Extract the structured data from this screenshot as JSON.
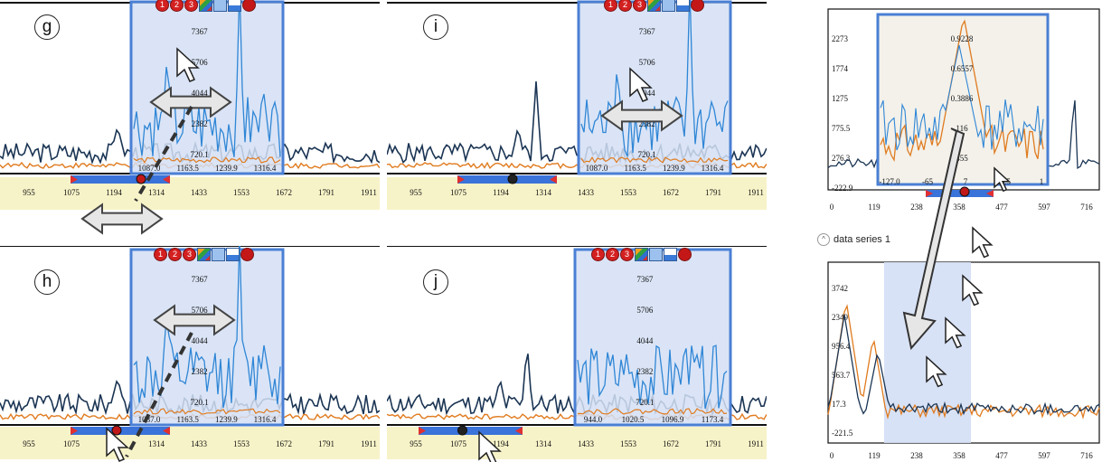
{
  "panels": {
    "g": {
      "badge": "g",
      "x_ticks": [
        "955",
        "1075",
        "1194",
        "1314",
        "1433",
        "1553",
        "1672",
        "1791",
        "1911"
      ],
      "lens_y_labels": [
        "7367",
        "5706",
        "4044",
        "2382",
        "720.1"
      ],
      "lens_x_labels": [
        "1087.0",
        "1163.5",
        "1239.9",
        "1316.4"
      ]
    },
    "h": {
      "badge": "h",
      "x_ticks": [
        "955",
        "1075",
        "1194",
        "1314",
        "1433",
        "1553",
        "1672",
        "1791",
        "1911"
      ],
      "lens_y_labels": [
        "7367",
        "5706",
        "4044",
        "2382",
        "720.1"
      ],
      "lens_x_labels": [
        "1087.0",
        "1163.5",
        "1239.9",
        "1316.4"
      ]
    },
    "i": {
      "badge": "i",
      "x_ticks": [
        "955",
        "1075",
        "1194",
        "1314",
        "1433",
        "1553",
        "1672",
        "1791",
        "1911"
      ],
      "lens_y_labels": [
        "7367",
        "5706",
        "4044",
        "2382",
        "720.1"
      ],
      "lens_x_labels": [
        "1087.0",
        "1163.5",
        "1239.9",
        "1316.4"
      ]
    },
    "j": {
      "badge": "j",
      "x_ticks": [
        "955",
        "1075",
        "1194",
        "1314",
        "1433",
        "1553",
        "1672",
        "1791",
        "1911"
      ],
      "lens_y_labels": [
        "7367",
        "5706",
        "4044",
        "2382",
        "720.1"
      ],
      "lens_x_labels": [
        "944.0",
        "1020.5",
        "1096.9",
        "1173.4"
      ]
    }
  },
  "toolbar": {
    "buttons": [
      "1",
      "2",
      "3"
    ],
    "icons": [
      "palette-icon",
      "grid-icon",
      "minimize-icon",
      "close-icon"
    ]
  },
  "right_top": {
    "y_labels": [
      "2273",
      "1774",
      "1275",
      "775.5",
      "276.3",
      "-222.9"
    ],
    "x_labels": [
      "0",
      "119",
      "238",
      "358",
      "477",
      "597",
      "716"
    ],
    "lens_y_labels": [
      "0.9228",
      "0.6557",
      "0.3886",
      "116",
      "455"
    ],
    "lens_x_labels": [
      "-127.0",
      "-65",
      "7",
      "56.5",
      "1"
    ]
  },
  "right_bottom": {
    "title": "data series 1",
    "collapse_icon": "^",
    "y_labels": [
      "3742",
      "2349",
      "956.4",
      "563.7",
      "17.3",
      "-221.5"
    ],
    "x_labels": [
      "0",
      "119",
      "238",
      "358",
      "477",
      "597",
      "716"
    ]
  },
  "colors": {
    "series_dark": "#1b3554",
    "series_orange": "#e07b1f",
    "lens_line": "#2f86d6",
    "lens_fill": "#d4dff5",
    "lens_border": "#4a7fd4",
    "axis_strip": "#f7f3c8",
    "slider": "#3a73d9",
    "handle": "#e03030"
  }
}
